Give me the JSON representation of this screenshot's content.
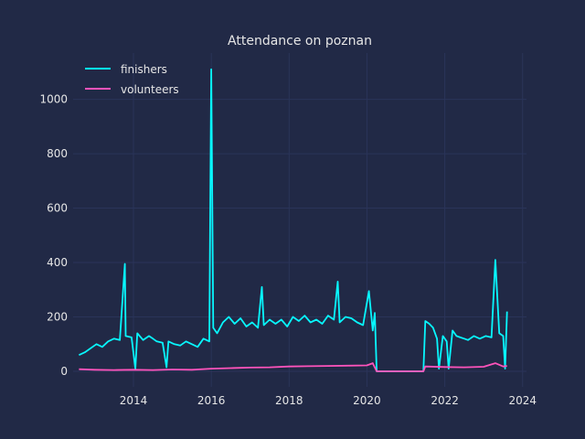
{
  "chart_data": {
    "type": "line",
    "title": "Attendance on poznan",
    "xlabel": "",
    "ylabel": "",
    "xlim": [
      2012.45,
      2024.1
    ],
    "ylim": [
      -57,
      1170
    ],
    "x_ticks": [
      2014,
      2016,
      2018,
      2020,
      2022,
      2024
    ],
    "y_ticks": [
      0,
      200,
      400,
      600,
      800,
      1000
    ],
    "grid": true,
    "legend_position": "top-left",
    "colors": {
      "background": "#212946",
      "grid": "#2A3459",
      "finishers": "#08F7FE",
      "volunteers": "#FE53BB"
    },
    "series": [
      {
        "name": "finishers",
        "color": "#08F7FE",
        "x": [
          2012.6,
          2012.75,
          2012.9,
          2013.05,
          2013.2,
          2013.35,
          2013.5,
          2013.65,
          2013.78,
          2013.8,
          2013.95,
          2014.05,
          2014.1,
          2014.25,
          2014.4,
          2014.5,
          2014.6,
          2014.75,
          2014.85,
          2014.9,
          2015.05,
          2015.2,
          2015.35,
          2015.5,
          2015.65,
          2015.8,
          2015.95,
          2016.0,
          2016.05,
          2016.15,
          2016.3,
          2016.45,
          2016.6,
          2016.75,
          2016.9,
          2017.05,
          2017.2,
          2017.3,
          2017.35,
          2017.5,
          2017.65,
          2017.8,
          2017.95,
          2018.1,
          2018.25,
          2018.4,
          2018.55,
          2018.7,
          2018.85,
          2019.0,
          2019.15,
          2019.25,
          2019.3,
          2019.45,
          2019.6,
          2019.75,
          2019.9,
          2020.05,
          2020.15,
          2020.2,
          2020.25,
          2021.45,
          2021.5,
          2021.6,
          2021.7,
          2021.8,
          2021.85,
          2021.95,
          2022.05,
          2022.1,
          2022.2,
          2022.3,
          2022.4,
          2022.5,
          2022.6,
          2022.75,
          2022.9,
          2023.05,
          2023.2,
          2023.3,
          2023.4,
          2023.5,
          2023.55,
          2023.6
        ],
        "values": [
          60,
          70,
          85,
          100,
          90,
          110,
          120,
          115,
          395,
          130,
          125,
          10,
          140,
          115,
          130,
          120,
          110,
          105,
          15,
          110,
          100,
          95,
          110,
          100,
          90,
          120,
          110,
          1110,
          160,
          140,
          180,
          200,
          175,
          195,
          165,
          180,
          160,
          310,
          170,
          190,
          175,
          190,
          165,
          200,
          185,
          205,
          180,
          190,
          175,
          205,
          190,
          330,
          180,
          200,
          195,
          180,
          170,
          295,
          150,
          215,
          0,
          0,
          185,
          175,
          160,
          120,
          10,
          130,
          110,
          10,
          150,
          130,
          125,
          120,
          115,
          130,
          120,
          130,
          125,
          410,
          140,
          130,
          10,
          220
        ]
      },
      {
        "name": "volunteers",
        "color": "#FE53BB",
        "x": [
          2012.6,
          2013.0,
          2013.5,
          2014.0,
          2014.5,
          2015.0,
          2015.5,
          2016.0,
          2016.5,
          2017.0,
          2017.5,
          2018.0,
          2018.5,
          2019.0,
          2019.5,
          2020.0,
          2020.15,
          2020.25,
          2021.45,
          2021.5,
          2022.0,
          2022.5,
          2023.0,
          2023.3,
          2023.5,
          2023.6
        ],
        "values": [
          8,
          6,
          5,
          6,
          5,
          7,
          6,
          10,
          12,
          14,
          15,
          18,
          19,
          20,
          21,
          22,
          30,
          0,
          0,
          18,
          16,
          15,
          17,
          30,
          18,
          20
        ]
      }
    ]
  }
}
